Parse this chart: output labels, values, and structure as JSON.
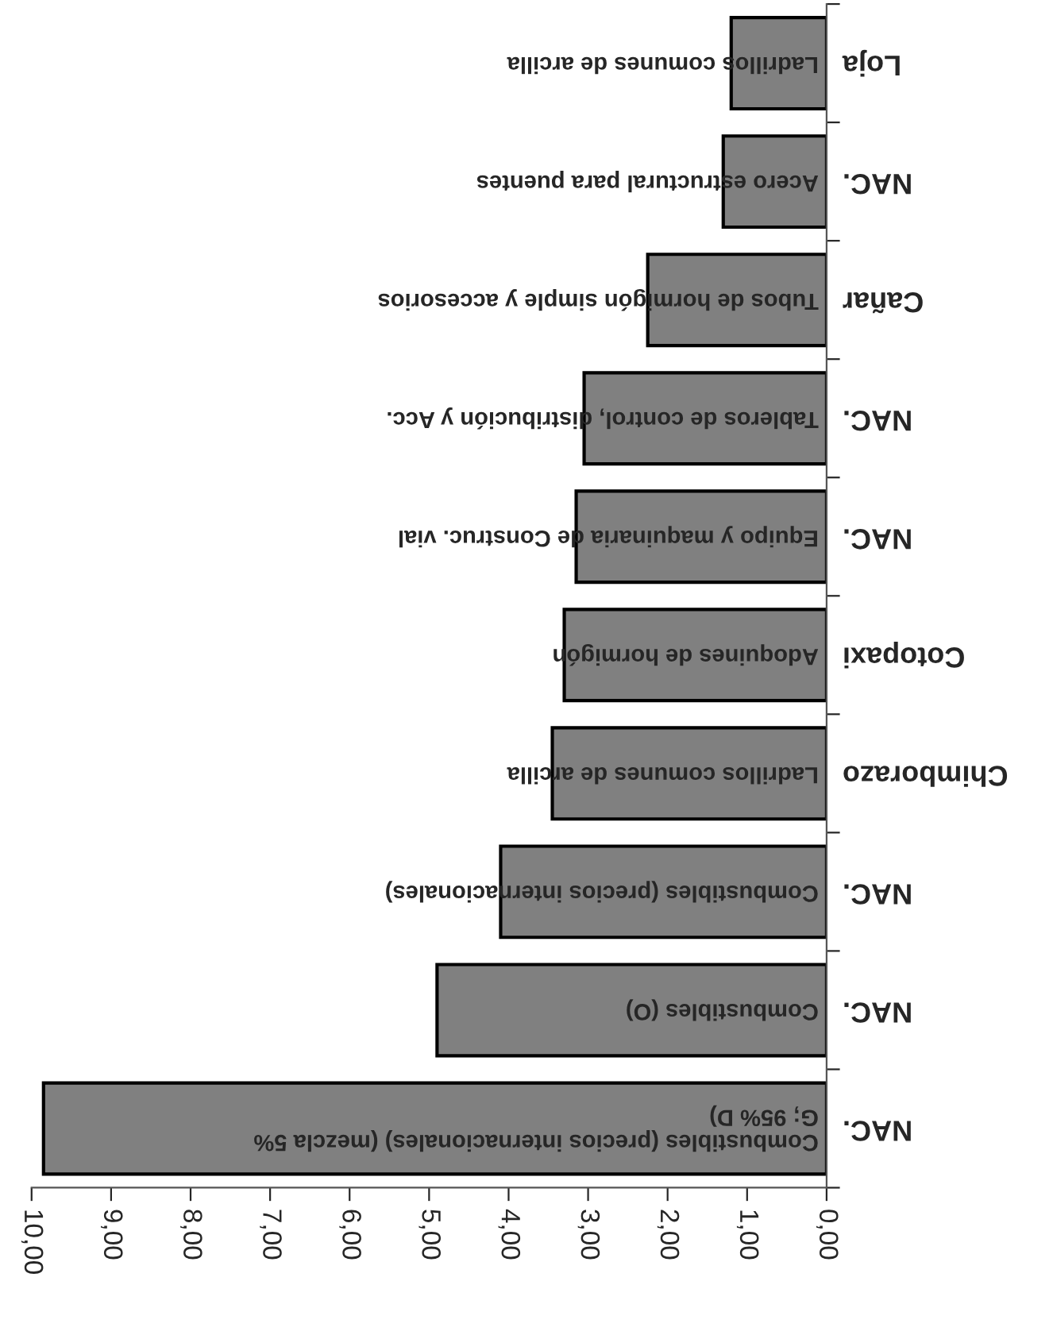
{
  "chart_data": {
    "type": "bar",
    "orientation": "horizontal",
    "categories": [
      "Loja",
      "NAC.",
      "Cañar",
      "NAC.",
      "NAC.",
      "Cotopaxi",
      "Chimborazo",
      "NAC.",
      "NAC.",
      "NAC."
    ],
    "values": [
      1.2,
      1.3,
      2.25,
      3.05,
      3.15,
      3.3,
      3.45,
      4.1,
      4.9,
      9.85
    ],
    "color": "#808080",
    "xlim": [
      10,
      0
    ],
    "xticks": [
      {
        "value": 10,
        "label": "10,00"
      },
      {
        "value": 9,
        "label": "9,00"
      },
      {
        "value": 8,
        "label": "8,00"
      },
      {
        "value": 7,
        "label": "7,00"
      },
      {
        "value": 6,
        "label": "6,00"
      },
      {
        "value": 5,
        "label": "5,00"
      },
      {
        "value": 4,
        "label": "4,00"
      },
      {
        "value": 3,
        "label": "3,00"
      },
      {
        "value": 2,
        "label": "2,00"
      },
      {
        "value": 1,
        "label": "1,00"
      },
      {
        "value": 0,
        "label": "0,00"
      }
    ],
    "annotations": [
      "Ladrillos comunes de arcilla",
      "Acero estructural para puentes",
      "Tubos de hormigón simple y accesorios",
      "Tableros de control, distribución y Acc.",
      "Equipo y maquinaria de Construc. vial",
      "Adoquines de hormigón",
      "Ladrillos comunes de arcilla",
      "Combustibles (precios internacionales)",
      "Combustibles (O)",
      "Combustibles (precios internacionales) (mezcla 5%\nG; 95% D)"
    ],
    "grid": false,
    "legend": false
  }
}
